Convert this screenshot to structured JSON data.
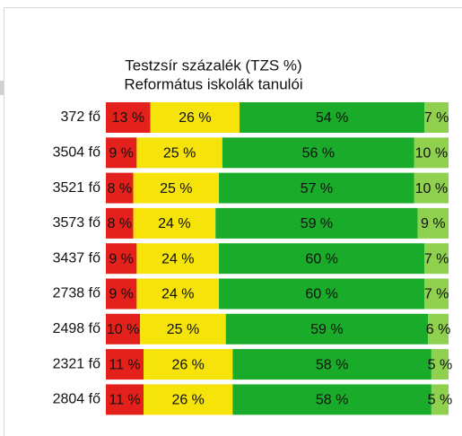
{
  "chart_data": {
    "type": "stacked_barh",
    "title": "Testzsír százalék (TZS %)",
    "subtitle": "Református iskolák tanulói",
    "categories": [
      "372 fő",
      "3504 fő",
      "3521 fő",
      "3573 fő",
      "3437 fő",
      "2738 fő",
      "2498 fő",
      "2321 fő",
      "2804 fő"
    ],
    "xlim": [
      0,
      100
    ],
    "series": [
      {
        "color": "#e3201b",
        "values": [
          13,
          9,
          8,
          8,
          9,
          9,
          10,
          11,
          11
        ],
        "value_labels": [
          "13 %",
          "9 %",
          "8 %",
          "8 %",
          "9 %",
          "9 %",
          "10 %",
          "11 %",
          "11 %"
        ]
      },
      {
        "color": "#f5e30a",
        "values": [
          26,
          25,
          25,
          24,
          24,
          24,
          25,
          26,
          26
        ],
        "value_labels": [
          "26 %",
          "25 %",
          "25 %",
          "24 %",
          "24 %",
          "24 %",
          "25 %",
          "26 %",
          "26 %"
        ]
      },
      {
        "color": "#1aab2b",
        "values": [
          54,
          56,
          57,
          59,
          60,
          60,
          59,
          58,
          58
        ],
        "value_labels": [
          "54 %",
          "56 %",
          "57 %",
          "59 %",
          "60 %",
          "60 %",
          "59 %",
          "58 %",
          "58 %"
        ]
      },
      {
        "color": "#8fd14f",
        "values": [
          7,
          10,
          10,
          9,
          7,
          7,
          6,
          5,
          5
        ],
        "value_labels": [
          "7 %",
          "10 %",
          "10 %",
          "9 %",
          "7 %",
          "7 %",
          "6 %",
          "5 %",
          "5 %"
        ]
      }
    ]
  }
}
